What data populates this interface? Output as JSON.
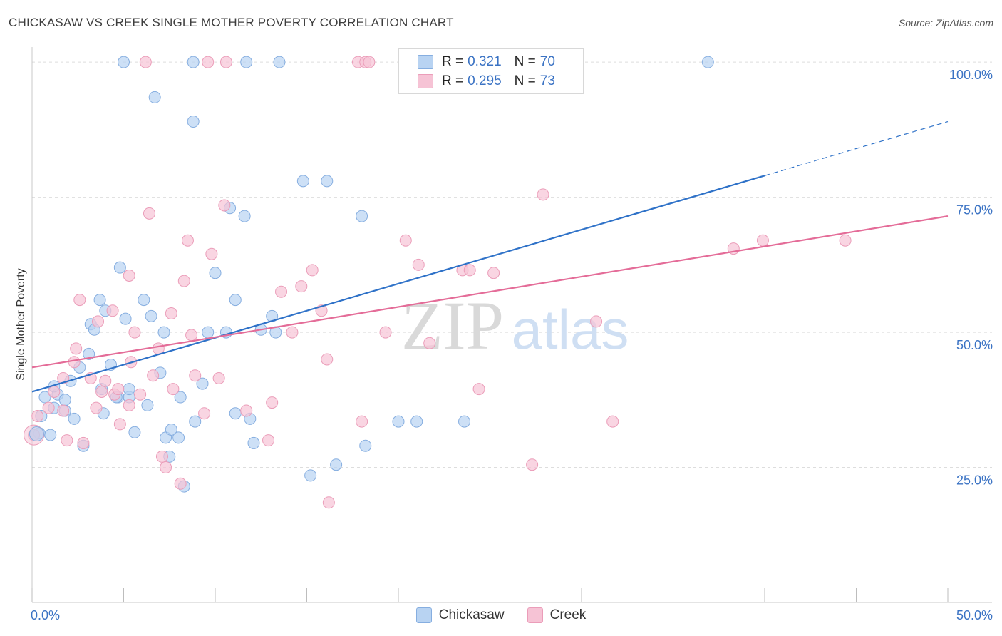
{
  "title": "CHICKASAW VS CREEK SINGLE MOTHER POVERTY CORRELATION CHART",
  "source": "Source: ZipAtlas.com",
  "watermark": {
    "zip": "ZIP",
    "atlas": "atlas"
  },
  "colors": {
    "blue_fill": "#b8d3f2",
    "blue_stroke": "#86aee0",
    "blue_line": "#2f72c8",
    "pink_fill": "#f6c3d5",
    "pink_stroke": "#eb9db9",
    "pink_line": "#e46c98",
    "tick_text": "#3b73c4",
    "grid": "#dddddd"
  },
  "legend_top": [
    {
      "r_label": "R =",
      "r_value": "0.321",
      "n_label": "N =",
      "n_value": "70"
    },
    {
      "r_label": "R =",
      "r_value": "0.295",
      "n_label": "N =",
      "n_value": "73"
    }
  ],
  "legend_bottom": [
    {
      "label": "Chickasaw"
    },
    {
      "label": "Creek"
    }
  ],
  "chart_data": {
    "type": "scatter",
    "title": "CHICKASAW VS CREEK SINGLE MOTHER POVERTY CORRELATION CHART",
    "xlabel": "",
    "ylabel": "Single Mother Poverty",
    "xlim": [
      0,
      50
    ],
    "ylim": [
      0,
      102
    ],
    "x_tick_labels": [
      "0.0%",
      "50.0%"
    ],
    "y_ticks": [
      25,
      50,
      75,
      100
    ],
    "y_tick_labels": [
      "25.0%",
      "50.0%",
      "75.0%",
      "100.0%"
    ],
    "grid": true,
    "legend_position": "top-center",
    "series": [
      {
        "name": "Chickasaw",
        "r": 0.321,
        "n": 70,
        "trend": {
          "x0": 0,
          "y0": 39.0,
          "x1": 40,
          "y1": 79.0,
          "dash_to_x": 50,
          "dash_to_y": 89.0
        },
        "points": [
          [
            0.1,
            31
          ],
          [
            0.4,
            31.3
          ],
          [
            1,
            31
          ],
          [
            0.5,
            34.5
          ],
          [
            0.7,
            38
          ],
          [
            1.2,
            36
          ],
          [
            1.8,
            35.5
          ],
          [
            1.4,
            38.5
          ],
          [
            1.8,
            37.5
          ],
          [
            1.2,
            40
          ],
          [
            2.1,
            41
          ],
          [
            2.3,
            34
          ],
          [
            2.8,
            29
          ],
          [
            2.6,
            43.5
          ],
          [
            3.1,
            46
          ],
          [
            3.2,
            51.5
          ],
          [
            3.7,
            56
          ],
          [
            4,
            54
          ],
          [
            3.8,
            39.5
          ],
          [
            3.9,
            35
          ],
          [
            3.4,
            50.5
          ],
          [
            4.3,
            44
          ],
          [
            4.7,
            38
          ],
          [
            4.6,
            38
          ],
          [
            5.1,
            52.5
          ],
          [
            4.8,
            62
          ],
          [
            5.3,
            38
          ],
          [
            5.3,
            39.5
          ],
          [
            5.6,
            31.5
          ],
          [
            6.1,
            56
          ],
          [
            6.3,
            36.5
          ],
          [
            6.5,
            53
          ],
          [
            7,
            42.5
          ],
          [
            7.2,
            50
          ],
          [
            7.3,
            30.5
          ],
          [
            7.5,
            27
          ],
          [
            7.6,
            32
          ],
          [
            8,
            30.5
          ],
          [
            8.1,
            38
          ],
          [
            8.3,
            21.5
          ],
          [
            8.9,
            33.5
          ],
          [
            9.3,
            40.5
          ],
          [
            9.6,
            50
          ],
          [
            10,
            61
          ],
          [
            10.6,
            50
          ],
          [
            10.8,
            73
          ],
          [
            11.1,
            56
          ],
          [
            11.1,
            35
          ],
          [
            11.6,
            71.5
          ],
          [
            11.9,
            34
          ],
          [
            12.1,
            29.5
          ],
          [
            12.5,
            50.5
          ],
          [
            13.1,
            53
          ],
          [
            13.3,
            50
          ],
          [
            14.8,
            78
          ],
          [
            15.2,
            23.5
          ],
          [
            16.1,
            78
          ],
          [
            16.6,
            25.5
          ],
          [
            18,
            71.5
          ],
          [
            18.2,
            29
          ],
          [
            20,
            33.5
          ],
          [
            21,
            33.5
          ],
          [
            23.6,
            33.5
          ],
          [
            6.7,
            93.5
          ],
          [
            8.8,
            89
          ],
          [
            8.8,
            100
          ],
          [
            11.7,
            100
          ],
          [
            13.5,
            100
          ],
          [
            36.9,
            100
          ],
          [
            5,
            100
          ]
        ]
      },
      {
        "name": "Creek",
        "r": 0.295,
        "n": 73,
        "trend": {
          "x0": 0,
          "y0": 43.5,
          "x1": 50,
          "y1": 71.5
        },
        "points": [
          [
            0.1,
            31
          ],
          [
            0.3,
            34.5
          ],
          [
            0.9,
            36
          ],
          [
            1.2,
            39
          ],
          [
            1.7,
            35.5
          ],
          [
            1.7,
            41.5
          ],
          [
            1.9,
            30
          ],
          [
            2.3,
            44.5
          ],
          [
            2.4,
            47
          ],
          [
            2.6,
            56
          ],
          [
            2.8,
            29.5
          ],
          [
            3.2,
            41.5
          ],
          [
            3.5,
            36
          ],
          [
            3.6,
            52
          ],
          [
            3.8,
            39
          ],
          [
            4,
            41
          ],
          [
            4.4,
            54
          ],
          [
            4.5,
            38.5
          ],
          [
            4.7,
            39.5
          ],
          [
            4.8,
            33
          ],
          [
            5.3,
            36.5
          ],
          [
            5.3,
            60.5
          ],
          [
            5.4,
            44.5
          ],
          [
            5.6,
            50
          ],
          [
            5.9,
            38.5
          ],
          [
            6.4,
            72
          ],
          [
            6.6,
            42
          ],
          [
            6.9,
            47
          ],
          [
            7.1,
            27
          ],
          [
            7.3,
            25
          ],
          [
            7.6,
            53.5
          ],
          [
            7.7,
            39.5
          ],
          [
            8.1,
            22
          ],
          [
            8.3,
            59.5
          ],
          [
            8.5,
            67
          ],
          [
            8.7,
            49.5
          ],
          [
            8.9,
            42
          ],
          [
            9.4,
            35
          ],
          [
            9.8,
            64.5
          ],
          [
            10.2,
            41.5
          ],
          [
            10.5,
            73.5
          ],
          [
            11.7,
            35.5
          ],
          [
            12.9,
            30
          ],
          [
            13.1,
            37
          ],
          [
            13.6,
            57.5
          ],
          [
            14.2,
            50
          ],
          [
            14.7,
            58.5
          ],
          [
            15.3,
            61.5
          ],
          [
            15.8,
            54
          ],
          [
            16.1,
            45
          ],
          [
            16.2,
            18.5
          ],
          [
            18,
            33.5
          ],
          [
            19.3,
            50
          ],
          [
            20.4,
            67
          ],
          [
            21.1,
            62.5
          ],
          [
            21.7,
            48
          ],
          [
            23.5,
            61.5
          ],
          [
            23.9,
            61.5
          ],
          [
            24.4,
            39.5
          ],
          [
            25.2,
            61
          ],
          [
            27.3,
            25.5
          ],
          [
            27.9,
            75.5
          ],
          [
            30.8,
            52
          ],
          [
            31.7,
            33.5
          ],
          [
            38.3,
            65.5
          ],
          [
            39.9,
            67
          ],
          [
            44.4,
            67
          ],
          [
            6.2,
            100
          ],
          [
            9.6,
            100
          ],
          [
            10.6,
            100
          ],
          [
            17.8,
            100
          ],
          [
            18.2,
            100
          ],
          [
            18.4,
            100
          ]
        ]
      }
    ]
  }
}
